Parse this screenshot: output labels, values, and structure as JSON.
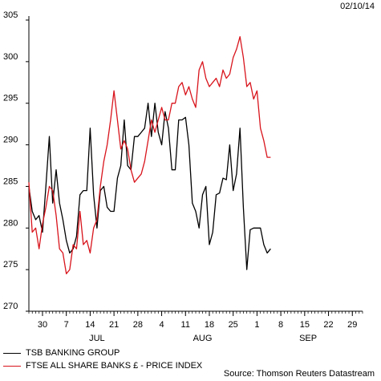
{
  "date_stamp": "02/10/14",
  "source": "Source: Thomson Reuters Datastream",
  "chart_data": {
    "type": "line",
    "grid": false,
    "legend_position": "bottom-left",
    "ylim": [
      270,
      305
    ],
    "yticks": [
      270,
      275,
      280,
      285,
      290,
      295,
      300,
      305
    ],
    "x_range": [
      "2014-06-26",
      "2014-10-02"
    ],
    "x_ticks": [
      {
        "date": "2014-06-30",
        "label": "30"
      },
      {
        "date": "2014-07-07",
        "label": "7"
      },
      {
        "date": "2014-07-14",
        "label": "14"
      },
      {
        "date": "2014-07-21",
        "label": "21"
      },
      {
        "date": "2014-07-28",
        "label": "28"
      },
      {
        "date": "2014-08-04",
        "label": "4"
      },
      {
        "date": "2014-08-11",
        "label": "11"
      },
      {
        "date": "2014-08-18",
        "label": "18"
      },
      {
        "date": "2014-08-25",
        "label": "25"
      },
      {
        "date": "2014-09-01",
        "label": "1"
      },
      {
        "date": "2014-09-08",
        "label": "8"
      },
      {
        "date": "2014-09-15",
        "label": "15"
      },
      {
        "date": "2014-09-22",
        "label": "22"
      },
      {
        "date": "2014-09-29",
        "label": "29"
      }
    ],
    "month_labels": [
      {
        "date": "2014-07-16",
        "label": "JUL"
      },
      {
        "date": "2014-08-16",
        "label": "AUG"
      },
      {
        "date": "2014-09-16",
        "label": "SEP"
      }
    ],
    "series": [
      {
        "name": "TSB BANKING GROUP",
        "color": "#000000",
        "points": [
          [
            "2014-06-26",
            285.0
          ],
          [
            "2014-06-27",
            282.0
          ],
          [
            "2014-06-28",
            281.0
          ],
          [
            "2014-06-29",
            281.5
          ],
          [
            "2014-06-30",
            279.5
          ],
          [
            "2014-07-01",
            285.0
          ],
          [
            "2014-07-02",
            291.0
          ],
          [
            "2014-07-03",
            283.0
          ],
          [
            "2014-07-04",
            287.0
          ],
          [
            "2014-07-05",
            283.0
          ],
          [
            "2014-07-06",
            281.0
          ],
          [
            "2014-07-07",
            278.5
          ],
          [
            "2014-07-08",
            277.0
          ],
          [
            "2014-07-09",
            277.5
          ],
          [
            "2014-07-10",
            279.0
          ],
          [
            "2014-07-11",
            284.0
          ],
          [
            "2014-07-12",
            284.5
          ],
          [
            "2014-07-13",
            284.5
          ],
          [
            "2014-07-14",
            292.0
          ],
          [
            "2014-07-15",
            284.0
          ],
          [
            "2014-07-16",
            280.0
          ],
          [
            "2014-07-17",
            284.5
          ],
          [
            "2014-07-18",
            285.0
          ],
          [
            "2014-07-19",
            282.5
          ],
          [
            "2014-07-20",
            282.0
          ],
          [
            "2014-07-21",
            282.0
          ],
          [
            "2014-07-22",
            286.0
          ],
          [
            "2014-07-23",
            287.5
          ],
          [
            "2014-07-24",
            293.0
          ],
          [
            "2014-07-25",
            287.5
          ],
          [
            "2014-07-26",
            287.0
          ],
          [
            "2014-07-27",
            291.0
          ],
          [
            "2014-07-28",
            291.0
          ],
          [
            "2014-07-29",
            291.5
          ],
          [
            "2014-07-30",
            292.0
          ],
          [
            "2014-07-31",
            295.0
          ],
          [
            "2014-08-01",
            291.0
          ],
          [
            "2014-08-02",
            295.0
          ],
          [
            "2014-08-03",
            291.5
          ],
          [
            "2014-08-04",
            290.0
          ],
          [
            "2014-08-05",
            294.0
          ],
          [
            "2014-08-06",
            292.0
          ],
          [
            "2014-08-07",
            287.0
          ],
          [
            "2014-08-08",
            287.0
          ],
          [
            "2014-08-09",
            293.0
          ],
          [
            "2014-08-10",
            293.0
          ],
          [
            "2014-08-11",
            293.3
          ],
          [
            "2014-08-12",
            290.0
          ],
          [
            "2014-08-13",
            283.0
          ],
          [
            "2014-08-14",
            282.0
          ],
          [
            "2014-08-15",
            280.0
          ],
          [
            "2014-08-16",
            284.0
          ],
          [
            "2014-08-17",
            285.0
          ],
          [
            "2014-08-18",
            278.0
          ],
          [
            "2014-08-19",
            279.5
          ],
          [
            "2014-08-20",
            284.0
          ],
          [
            "2014-08-21",
            284.2
          ],
          [
            "2014-08-22",
            286.0
          ],
          [
            "2014-08-23",
            285.8
          ],
          [
            "2014-08-24",
            290.0
          ],
          [
            "2014-08-25",
            284.5
          ],
          [
            "2014-08-26",
            286.5
          ],
          [
            "2014-08-27",
            292.0
          ],
          [
            "2014-08-28",
            282.5
          ],
          [
            "2014-08-29",
            275.0
          ],
          [
            "2014-08-30",
            279.8
          ],
          [
            "2014-08-31",
            280.0
          ],
          [
            "2014-09-01",
            280.0
          ],
          [
            "2014-09-02",
            280.0
          ],
          [
            "2014-09-03",
            278.0
          ],
          [
            "2014-09-04",
            277.0
          ],
          [
            "2014-09-05",
            277.5
          ]
        ]
      },
      {
        "name": "FTSE ALL SHARE BANKS £ - PRICE INDEX",
        "color": "#d8141c",
        "points": [
          [
            "2014-06-26",
            285.5
          ],
          [
            "2014-06-27",
            279.5
          ],
          [
            "2014-06-28",
            280.0
          ],
          [
            "2014-06-29",
            277.5
          ],
          [
            "2014-06-30",
            280.5
          ],
          [
            "2014-07-01",
            282.5
          ],
          [
            "2014-07-02",
            285.0
          ],
          [
            "2014-07-03",
            284.5
          ],
          [
            "2014-07-04",
            281.5
          ],
          [
            "2014-07-05",
            277.5
          ],
          [
            "2014-07-06",
            277.0
          ],
          [
            "2014-07-07",
            274.5
          ],
          [
            "2014-07-08",
            275.0
          ],
          [
            "2014-07-09",
            278.0
          ],
          [
            "2014-07-10",
            277.5
          ],
          [
            "2014-07-11",
            282.0
          ],
          [
            "2014-07-12",
            278.0
          ],
          [
            "2014-07-13",
            278.5
          ],
          [
            "2014-07-14",
            277.0
          ],
          [
            "2014-07-15",
            280.0
          ],
          [
            "2014-07-16",
            281.0
          ],
          [
            "2014-07-17",
            285.0
          ],
          [
            "2014-07-18",
            288.0
          ],
          [
            "2014-07-19",
            290.0
          ],
          [
            "2014-07-20",
            293.0
          ],
          [
            "2014-07-21",
            296.5
          ],
          [
            "2014-07-22",
            293.0
          ],
          [
            "2014-07-23",
            289.5
          ],
          [
            "2014-07-24",
            290.5
          ],
          [
            "2014-07-25",
            289.5
          ],
          [
            "2014-07-26",
            287.0
          ],
          [
            "2014-07-27",
            285.5
          ],
          [
            "2014-07-28",
            286.0
          ],
          [
            "2014-07-29",
            286.5
          ],
          [
            "2014-07-30",
            288.0
          ],
          [
            "2014-07-31",
            290.5
          ],
          [
            "2014-08-01",
            293.0
          ],
          [
            "2014-08-02",
            291.5
          ],
          [
            "2014-08-03",
            293.0
          ],
          [
            "2014-08-04",
            294.5
          ],
          [
            "2014-08-05",
            293.0
          ],
          [
            "2014-08-06",
            293.0
          ],
          [
            "2014-08-07",
            295.0
          ],
          [
            "2014-08-08",
            295.0
          ],
          [
            "2014-08-09",
            297.0
          ],
          [
            "2014-08-10",
            297.5
          ],
          [
            "2014-08-11",
            296.0
          ],
          [
            "2014-08-12",
            297.0
          ],
          [
            "2014-08-13",
            295.5
          ],
          [
            "2014-08-14",
            294.5
          ],
          [
            "2014-08-15",
            299.0
          ],
          [
            "2014-08-16",
            300.0
          ],
          [
            "2014-08-17",
            298.0
          ],
          [
            "2014-08-18",
            297.0
          ],
          [
            "2014-08-19",
            297.5
          ],
          [
            "2014-08-20",
            298.0
          ],
          [
            "2014-08-21",
            297.0
          ],
          [
            "2014-08-22",
            299.0
          ],
          [
            "2014-08-23",
            298.0
          ],
          [
            "2014-08-24",
            298.5
          ],
          [
            "2014-08-25",
            300.5
          ],
          [
            "2014-08-26",
            301.5
          ],
          [
            "2014-08-27",
            303.0
          ],
          [
            "2014-08-28",
            300.5
          ],
          [
            "2014-08-29",
            297.0
          ],
          [
            "2014-08-30",
            297.5
          ],
          [
            "2014-08-31",
            295.5
          ],
          [
            "2014-09-01",
            296.5
          ],
          [
            "2014-09-02",
            292.0
          ],
          [
            "2014-09-03",
            290.5
          ],
          [
            "2014-09-04",
            288.5
          ],
          [
            "2014-09-05",
            288.5
          ]
        ]
      }
    ]
  }
}
